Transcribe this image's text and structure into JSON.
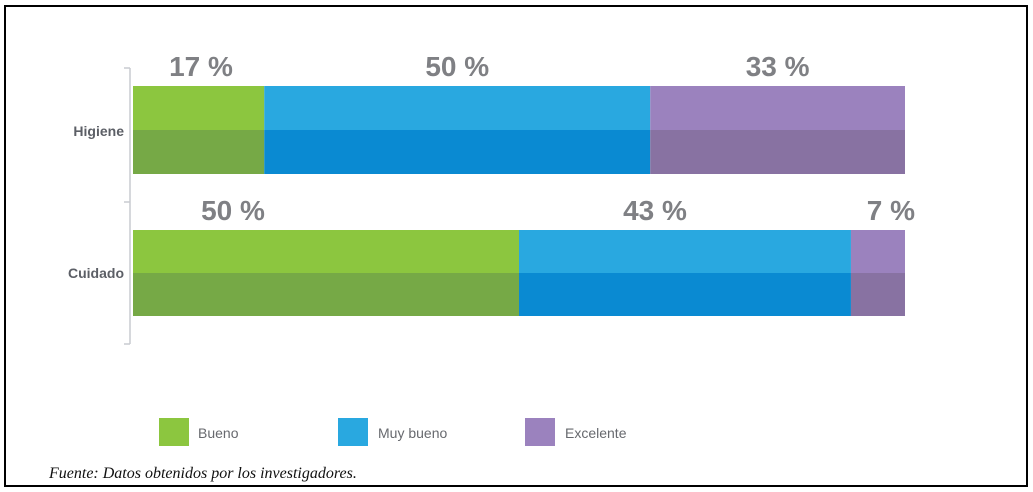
{
  "chart_data": {
    "type": "bar",
    "orientation": "horizontal",
    "stacked": true,
    "percent": true,
    "categories": [
      "Higiene",
      "Cuidado"
    ],
    "series": [
      {
        "name": "Bueno",
        "values": [
          17,
          50
        ],
        "color": "#8cc63f",
        "shade": "#76a946"
      },
      {
        "name": "Muy bueno",
        "values": [
          50,
          43
        ],
        "color": "#29a8e0",
        "shade": "#0a8ad2"
      },
      {
        "name": "Excelente",
        "values": [
          33,
          7
        ],
        "color": "#9b82be",
        "shade": "#8872a2"
      }
    ],
    "data_labels": [
      [
        "17 %",
        "50 %",
        "33 %"
      ],
      [
        "50 %",
        "43 %",
        "7 %"
      ]
    ],
    "title": "",
    "xlabel": "",
    "ylabel": "",
    "xlim": [
      0,
      100
    ],
    "grid": false,
    "legend_position": "bottom-left",
    "text_colors": {
      "labels": "#7f8084",
      "axis": "#5c5f66",
      "legend": "#67696e"
    }
  },
  "source_note": "Fuente: Datos obtenidos por los investigadores."
}
